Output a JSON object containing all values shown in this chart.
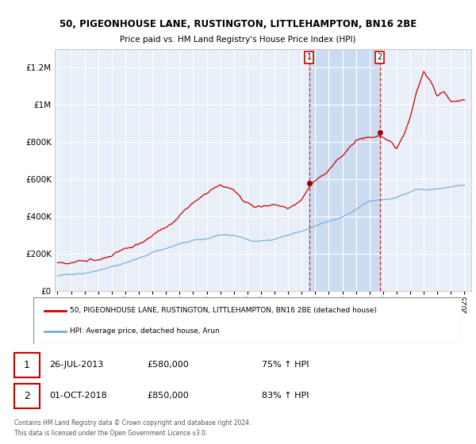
{
  "title": "50, PIGEONHOUSE LANE, RUSTINGTON, LITTLEHAMPTON, BN16 2BE",
  "subtitle": "Price paid vs. HM Land Registry's House Price Index (HPI)",
  "legend_line1": "50, PIGEONHOUSE LANE, RUSTINGTON, LITTLEHAMPTON, BN16 2BE (detached house)",
  "legend_line2": "HPI: Average price, detached house, Arun",
  "transaction1_date": "26-JUL-2013",
  "transaction1_price": 580000,
  "transaction1_pct": "75% ↑ HPI",
  "transaction2_date": "01-OCT-2018",
  "transaction2_price": 850000,
  "transaction2_pct": "83% ↑ HPI",
  "footnote": "Contains HM Land Registry data © Crown copyright and database right 2024.\nThis data is licensed under the Open Government Licence v3.0.",
  "hpi_color": "#7bafd4",
  "price_color": "#cc0000",
  "background_plot": "#e8eff8",
  "span_color": "#ccdcf0",
  "marker1_x": 2013.57,
  "marker2_x": 2018.75,
  "t1_y": 580000,
  "t2_y": 850000,
  "ylim_max": 1300000,
  "yticks": [
    0,
    200000,
    400000,
    600000,
    800000,
    1000000,
    1200000
  ],
  "ytick_labels": [
    "£0",
    "£200K",
    "£400K",
    "£600K",
    "£800K",
    "£1M",
    "£1.2M"
  ],
  "xmin": 1994.8,
  "xmax": 2025.5
}
